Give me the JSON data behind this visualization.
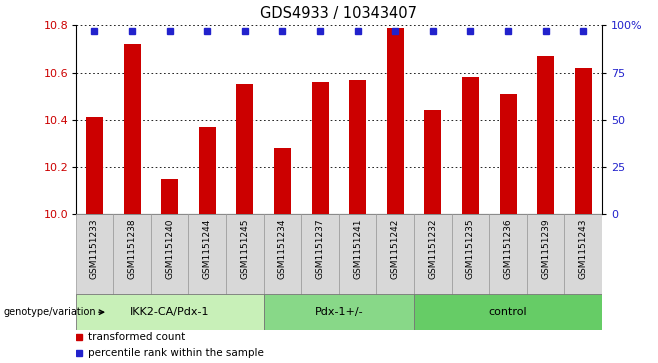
{
  "title": "GDS4933 / 10343407",
  "samples": [
    "GSM1151233",
    "GSM1151238",
    "GSM1151240",
    "GSM1151244",
    "GSM1151245",
    "GSM1151234",
    "GSM1151237",
    "GSM1151241",
    "GSM1151242",
    "GSM1151232",
    "GSM1151235",
    "GSM1151236",
    "GSM1151239",
    "GSM1151243"
  ],
  "values": [
    10.41,
    10.72,
    10.15,
    10.37,
    10.55,
    10.28,
    10.56,
    10.57,
    10.79,
    10.44,
    10.58,
    10.51,
    10.67,
    10.62
  ],
  "groups": [
    {
      "label": "IKK2-CA/Pdx-1",
      "start": 0,
      "end": 5,
      "color": "#c8f0b8"
    },
    {
      "label": "Pdx-1+/-",
      "start": 5,
      "end": 9,
      "color": "#88d888"
    },
    {
      "label": "control",
      "start": 9,
      "end": 14,
      "color": "#66cc66"
    }
  ],
  "bar_color": "#cc0000",
  "dot_color": "#2222cc",
  "ylim": [
    10.0,
    10.8
  ],
  "yticks": [
    10.0,
    10.2,
    10.4,
    10.6,
    10.8
  ],
  "right_yticks": [
    0,
    25,
    50,
    75,
    100
  ],
  "right_ylim": [
    0,
    100
  ],
  "left_tick_color": "#cc0000",
  "right_tick_color": "#2222cc",
  "bg_color": "#d8d8d8",
  "legend_items": [
    {
      "color": "#cc0000",
      "label": "transformed count"
    },
    {
      "color": "#2222cc",
      "label": "percentile rank within the sample"
    }
  ],
  "genotype_label": "genotype/variation"
}
